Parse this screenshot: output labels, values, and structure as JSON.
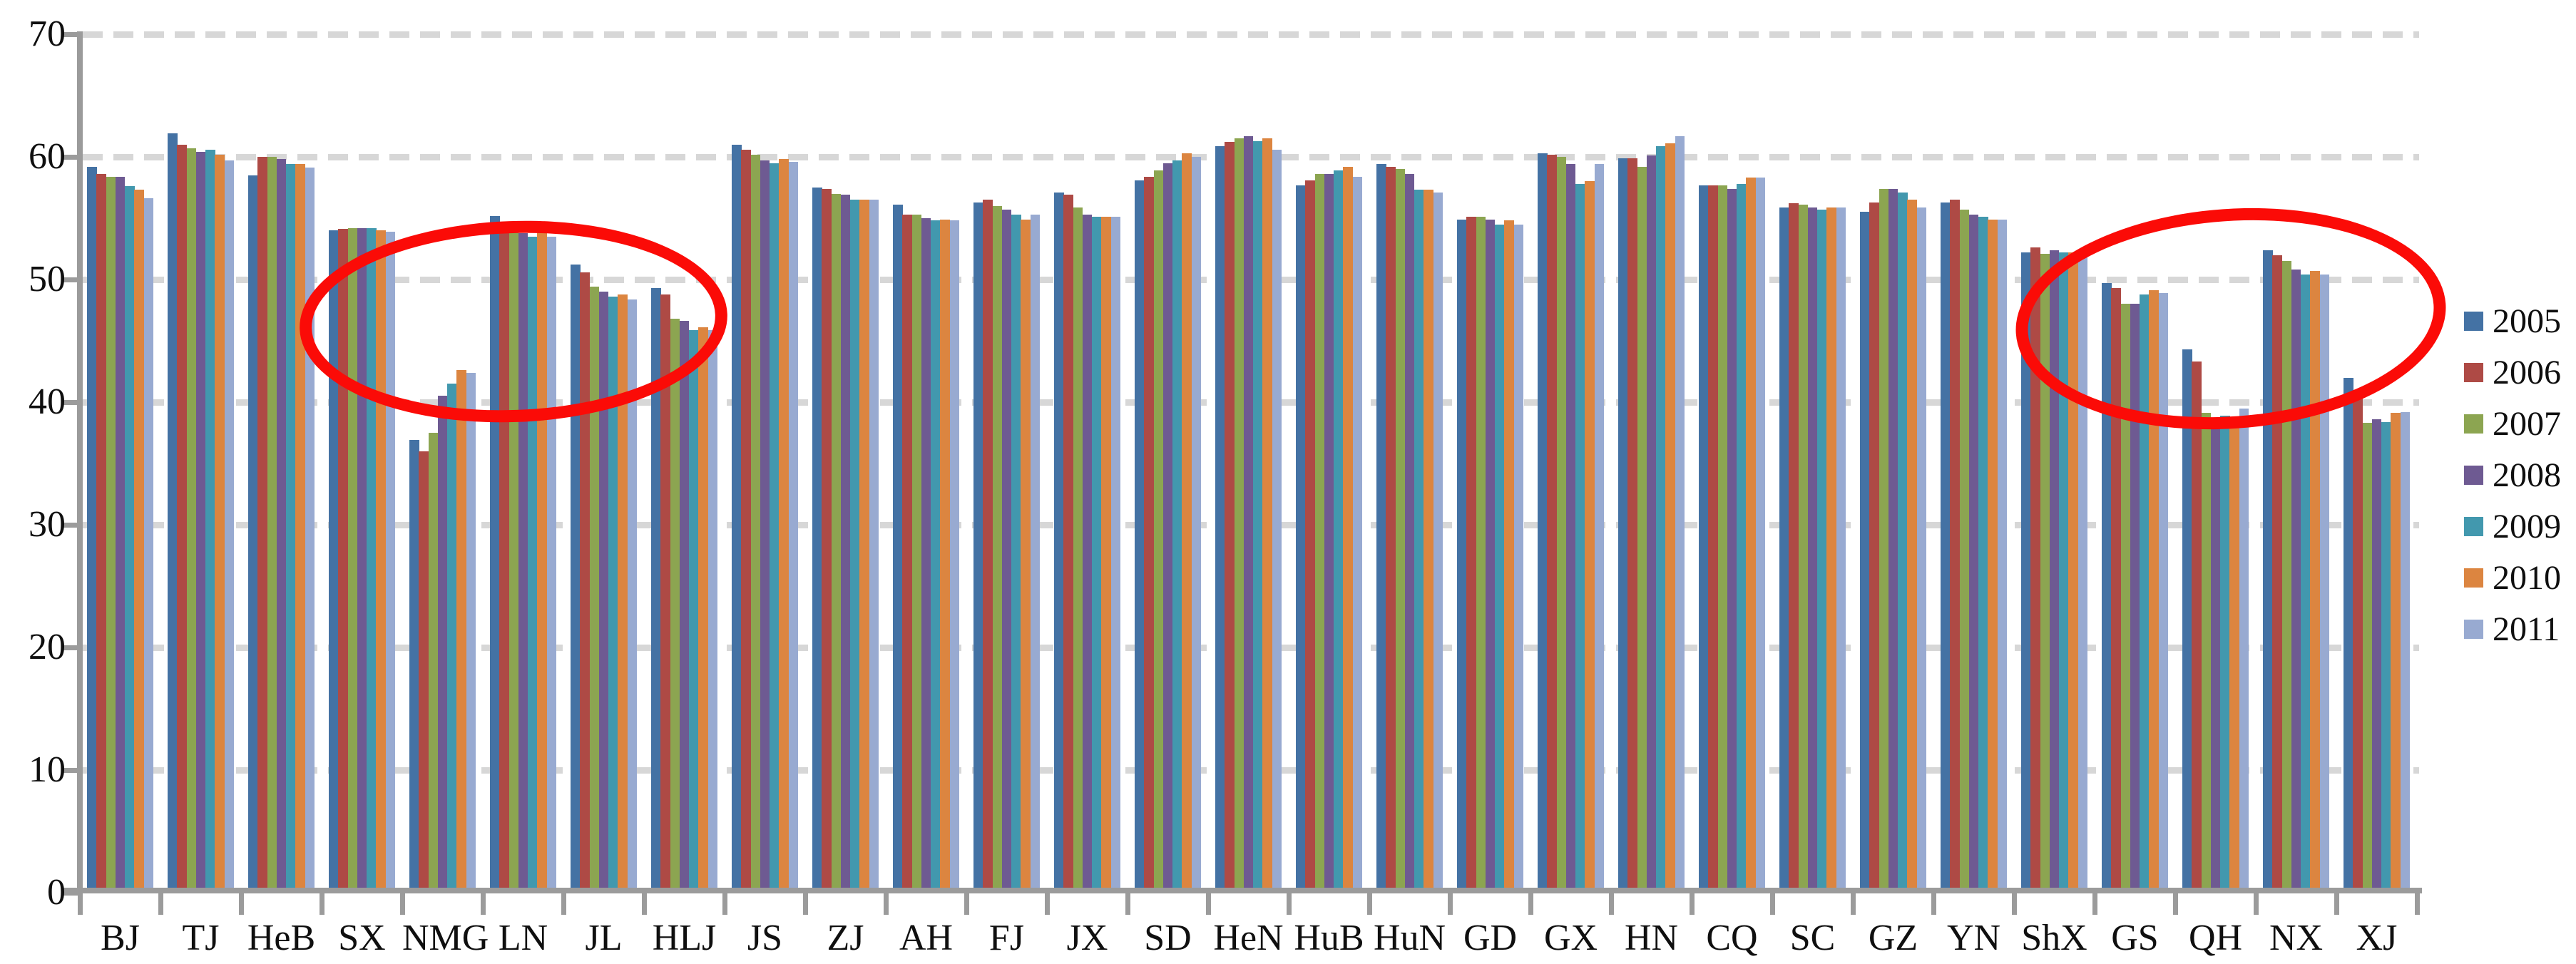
{
  "chart_data": {
    "type": "bar",
    "title": "",
    "xlabel": "",
    "ylabel": "",
    "ylim": [
      0,
      70
    ],
    "ytick_step": 10,
    "yticks": [
      0,
      10,
      20,
      30,
      40,
      50,
      60,
      70
    ],
    "grid": "horizontal-dashed",
    "legend_position": "right",
    "categories": [
      "BJ",
      "TJ",
      "HeB",
      "SX",
      "NMG",
      "LN",
      "JL",
      "HLJ",
      "JS",
      "ZJ",
      "AH",
      "FJ",
      "JX",
      "SD",
      "HeN",
      "HuB",
      "HuN",
      "GD",
      "GX",
      "HN",
      "CQ",
      "SC",
      "GZ",
      "YN",
      "ShX",
      "GS",
      "QH",
      "NX",
      "XJ"
    ],
    "series": [
      {
        "name": "2005",
        "color": "#4472A4",
        "values": [
          59.2,
          61.9,
          58.5,
          54.0,
          36.9,
          55.2,
          51.2,
          49.3,
          61.0,
          57.5,
          56.1,
          56.3,
          57.1,
          58.1,
          60.9,
          57.7,
          59.4,
          54.9,
          60.3,
          59.9,
          57.7,
          55.9,
          55.5,
          56.3,
          52.2,
          49.7,
          44.3,
          52.4,
          42.0
        ]
      },
      {
        "name": "2006",
        "color": "#AE4A45",
        "values": [
          58.6,
          61.0,
          60.0,
          54.1,
          36.0,
          54.5,
          50.6,
          48.8,
          60.6,
          57.4,
          55.3,
          56.5,
          56.9,
          58.4,
          61.2,
          58.1,
          59.2,
          55.1,
          60.2,
          59.9,
          57.7,
          56.2,
          56.3,
          56.5,
          52.6,
          49.3,
          43.3,
          52.0,
          40.8
        ]
      },
      {
        "name": "2007",
        "color": "#8CA551",
        "values": [
          58.4,
          60.7,
          60.0,
          54.2,
          37.5,
          54.2,
          49.4,
          46.8,
          60.2,
          57.0,
          55.3,
          56.0,
          55.9,
          58.9,
          61.5,
          58.6,
          59.0,
          55.1,
          60.0,
          59.2,
          57.7,
          56.1,
          57.4,
          55.7,
          52.1,
          48.0,
          39.1,
          51.5,
          38.3
        ]
      },
      {
        "name": "2008",
        "color": "#6E5A92",
        "values": [
          58.4,
          60.4,
          59.8,
          54.2,
          40.5,
          53.8,
          49.0,
          46.6,
          59.7,
          56.9,
          55.0,
          55.7,
          55.3,
          59.5,
          61.7,
          58.6,
          58.6,
          54.9,
          59.4,
          60.1,
          57.4,
          55.9,
          57.4,
          55.3,
          52.4,
          48.0,
          38.7,
          50.8,
          38.6
        ]
      },
      {
        "name": "2009",
        "color": "#4298AE",
        "values": [
          57.6,
          60.6,
          59.4,
          54.2,
          41.5,
          53.5,
          48.6,
          45.9,
          59.5,
          56.5,
          54.8,
          55.3,
          55.1,
          59.7,
          61.3,
          58.9,
          57.3,
          54.5,
          57.8,
          60.9,
          57.8,
          55.7,
          57.1,
          55.1,
          52.2,
          48.8,
          38.9,
          50.4,
          38.4
        ]
      },
      {
        "name": "2010",
        "color": "#DC8540",
        "values": [
          57.3,
          60.2,
          59.4,
          54.0,
          42.6,
          54.0,
          48.8,
          46.1,
          59.8,
          56.5,
          54.9,
          54.9,
          55.1,
          60.3,
          61.5,
          59.2,
          57.3,
          54.8,
          58.0,
          61.1,
          58.3,
          55.9,
          56.5,
          54.9,
          52.2,
          49.1,
          38.3,
          50.7,
          39.1
        ]
      },
      {
        "name": "2011",
        "color": "#98AAD1",
        "values": [
          56.6,
          59.7,
          59.1,
          53.9,
          42.4,
          53.5,
          48.4,
          45.9,
          59.6,
          56.5,
          54.8,
          55.3,
          55.1,
          60.0,
          60.6,
          58.4,
          57.1,
          54.5,
          59.4,
          61.7,
          58.3,
          55.9,
          55.9,
          54.9,
          52.2,
          48.9,
          39.5,
          50.4,
          39.2
        ]
      }
    ],
    "annotations": [
      {
        "shape": "ellipse",
        "color": "#FB0B07",
        "around_categories": [
          "SX",
          "NMG",
          "LN",
          "JL",
          "HLJ"
        ]
      },
      {
        "shape": "ellipse",
        "color": "#FB0B07",
        "around_categories": [
          "ShX",
          "GS",
          "QH",
          "NX",
          "XJ"
        ]
      }
    ]
  },
  "styles": {
    "background": "#FFFFFF",
    "axis_color": "#9B9B9B",
    "gridline_color": "#D7D7D7",
    "text_color": "#0F0F0F",
    "annotation_color": "#FB0B07"
  }
}
